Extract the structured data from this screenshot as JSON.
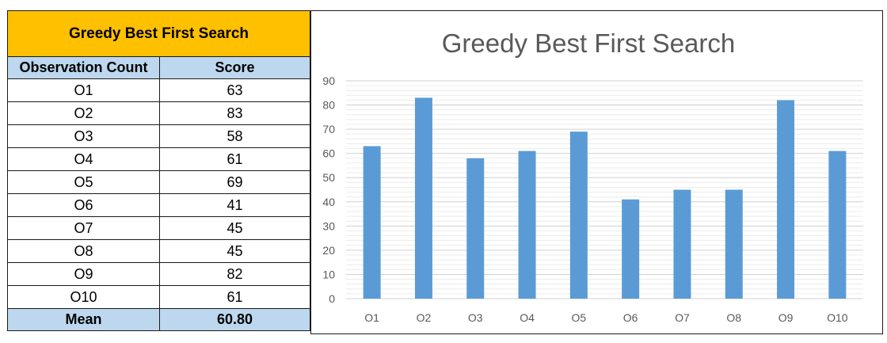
{
  "table": {
    "title": "Greedy Best First Search",
    "headers": [
      "Observation Count",
      "Score"
    ],
    "rows": [
      {
        "label": "O1",
        "value": "63"
      },
      {
        "label": "O2",
        "value": "83"
      },
      {
        "label": "O3",
        "value": "58"
      },
      {
        "label": "O4",
        "value": "61"
      },
      {
        "label": "O5",
        "value": "69"
      },
      {
        "label": "O6",
        "value": "41"
      },
      {
        "label": "O7",
        "value": "45"
      },
      {
        "label": "O8",
        "value": "45"
      },
      {
        "label": "O9",
        "value": "82"
      },
      {
        "label": "O10",
        "value": "61"
      }
    ],
    "footer": {
      "label": "Mean",
      "value": "60.80"
    },
    "colors": {
      "title_bg": "#ffc000",
      "header_bg": "#bdd7ee"
    }
  },
  "chart_data": {
    "type": "bar",
    "title": "Greedy Best First Search",
    "categories": [
      "O1",
      "O2",
      "O3",
      "O4",
      "O5",
      "O6",
      "O7",
      "O8",
      "O9",
      "O10"
    ],
    "values": [
      63,
      83,
      58,
      61,
      69,
      41,
      45,
      45,
      82,
      61
    ],
    "xlabel": "",
    "ylabel": "",
    "ylim": [
      0,
      90
    ],
    "yticks": [
      0,
      10,
      20,
      30,
      40,
      50,
      60,
      70,
      80,
      90
    ],
    "grid": true,
    "legend": "none",
    "bar_color": "#5b9bd5"
  }
}
